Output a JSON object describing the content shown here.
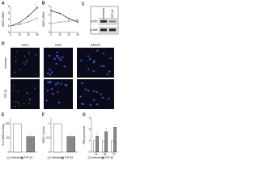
{
  "chart_data": [
    {
      "type": "line",
      "label": "A",
      "y_label": "SOD2 mRNA",
      "x": [
        0,
        10,
        20,
        30
      ],
      "xlim": [
        0,
        30
      ],
      "xticks": [
        0,
        10,
        20,
        30
      ],
      "ylim": [
        0,
        4
      ],
      "yticks": [
        0,
        1,
        2,
        3,
        4
      ],
      "series": [
        {
          "color": "#111111",
          "values": [
            1,
            1.5,
            2.5,
            3.8
          ]
        },
        {
          "color": "#888888",
          "values": [
            1,
            1.2,
            1.6,
            2.2
          ]
        }
      ],
      "annotation": "*"
    },
    {
      "type": "line",
      "label": "B",
      "y_label": "SOD2 mRNA",
      "x": [
        0,
        10,
        20,
        30
      ],
      "xlim": [
        0,
        30
      ],
      "xticks": [
        0,
        10,
        20,
        30
      ],
      "ylim": [
        0,
        3
      ],
      "yticks": [
        0,
        1,
        2,
        3
      ],
      "series": [
        {
          "color": "#111111",
          "values": [
            2.5,
            2.2,
            1.6,
            1.2
          ]
        },
        {
          "color": "#888888",
          "values": [
            1,
            1.2,
            1.3,
            1.4
          ]
        }
      ],
      "annotation": "*"
    },
    {
      "type": "bar",
      "label": "E",
      "y_label": "% of SOD2 activity",
      "categories": [
        "Untreated",
        "TGF-β1"
      ],
      "colors": [
        "#ffffff",
        "#888888"
      ],
      "values": [
        100,
        55
      ],
      "ylim": [
        0,
        120
      ],
      "yticks": [
        0,
        50,
        100
      ],
      "annotation": "*"
    },
    {
      "type": "bar",
      "label": "F",
      "y_label": "SOD2 / β-actin",
      "categories": [
        "Untreated",
        "TGF-β1"
      ],
      "colors": [
        "#ffffff",
        "#888888"
      ],
      "values": [
        1,
        0.55
      ],
      "ylim": [
        0,
        1.2
      ],
      "yticks": [
        0,
        0.5,
        1
      ],
      "annotation": "*"
    },
    {
      "type": "grouped-bar",
      "label": "G",
      "y_label": "ROS production",
      "categories": [
        "24",
        "48",
        "72"
      ],
      "ylim": [
        0,
        3
      ],
      "yticks": [
        0,
        1,
        2,
        3
      ],
      "series": [
        {
          "name": "Untreated",
          "color": "#ffffff",
          "values": [
            1,
            1,
            1
          ]
        },
        {
          "name": "TGF-β1",
          "color": "#888888",
          "values": [
            1.4,
            1.8,
            2.2
          ]
        }
      ],
      "annotation": "*"
    }
  ],
  "blot": {
    "label": "C",
    "lanes": [
      "Untreated",
      "TGF-β1"
    ],
    "rows": [
      "SOD2",
      "β-actin"
    ]
  },
  "micrographs": {
    "label": "D",
    "columns": [
      "SOD2",
      "DAPI",
      "MERGE"
    ],
    "rows": [
      "Untreated",
      "TGF-β1"
    ]
  }
}
